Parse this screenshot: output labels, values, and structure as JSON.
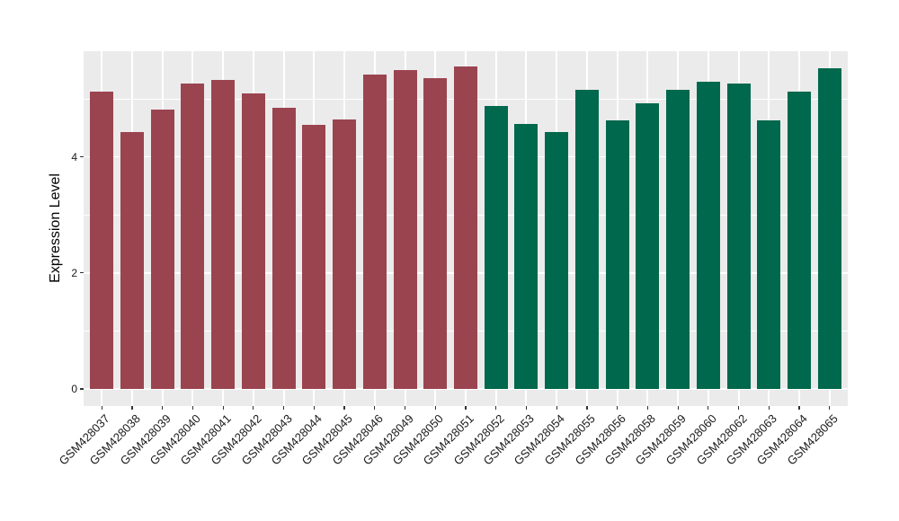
{
  "figure": {
    "background_color": "#FFFFFF",
    "panel_background_color": "#EBEBEB",
    "gridline_color": "#FFFFFF",
    "tick_mark_color": "#333333",
    "axis_text_color": "#1A1A1A"
  },
  "chart_data": {
    "type": "bar",
    "title": "",
    "xlabel": "",
    "ylabel": "Expression Level",
    "ylim": [
      0,
      5.81
    ],
    "yticks_major": [
      0,
      2,
      4
    ],
    "yticks_minor": [
      1,
      3,
      5
    ],
    "grid": true,
    "legend_position": "none",
    "categories": [
      "GSM428037",
      "GSM428038",
      "GSM428039",
      "GSM428040",
      "GSM428041",
      "GSM428042",
      "GSM428043",
      "GSM428044",
      "GSM428045",
      "GSM428046",
      "GSM428049",
      "GSM428050",
      "GSM428051",
      "GSM428052",
      "GSM428053",
      "GSM428054",
      "GSM428055",
      "GSM428056",
      "GSM428058",
      "GSM428059",
      "GSM428060",
      "GSM428062",
      "GSM428063",
      "GSM428064",
      "GSM428065"
    ],
    "values": [
      5.12,
      4.42,
      4.82,
      5.26,
      5.33,
      5.1,
      4.85,
      4.55,
      4.65,
      5.42,
      5.5,
      5.35,
      5.56,
      4.88,
      4.57,
      4.42,
      5.16,
      4.63,
      4.93,
      5.15,
      5.29,
      5.27,
      4.63,
      5.13,
      5.53
    ],
    "bar_group_index": [
      0,
      0,
      0,
      0,
      0,
      0,
      0,
      0,
      0,
      0,
      0,
      0,
      0,
      1,
      1,
      1,
      1,
      1,
      1,
      1,
      1,
      1,
      1,
      1,
      1
    ],
    "group_colors": [
      "#9A4450",
      "#00684C"
    ]
  }
}
